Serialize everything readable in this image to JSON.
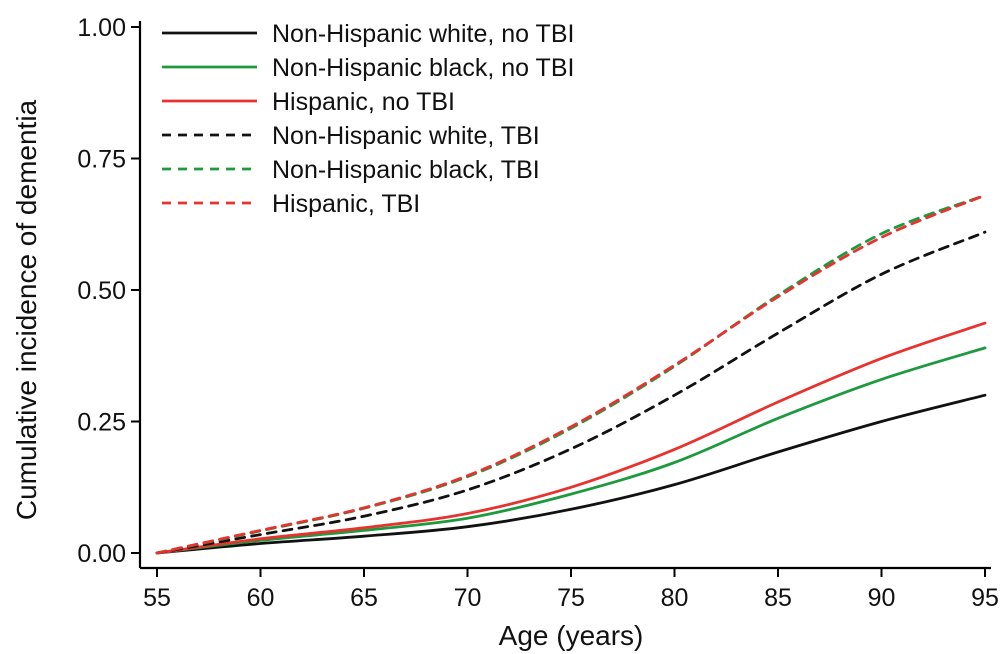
{
  "chart_data": {
    "type": "line",
    "title": "",
    "xlabel": "Age (years)",
    "ylabel": "Cumulative incidence of dementia",
    "xlim": [
      55,
      95
    ],
    "ylim": [
      0,
      1
    ],
    "x_ticks": [
      55,
      60,
      65,
      70,
      75,
      80,
      85,
      90,
      95
    ],
    "y_ticks": [
      0,
      0.25,
      0.5,
      0.75,
      1
    ],
    "y_tick_labels": [
      "0.00",
      "0.25",
      "0.50",
      "0.75",
      "1.00"
    ],
    "grid": false,
    "legend_position": "top-left",
    "x": [
      55,
      60,
      65,
      70,
      75,
      80,
      85,
      90,
      95
    ],
    "series": [
      {
        "name": "Non-Hispanic white, no TBI",
        "color": "#111111",
        "dash": "solid",
        "values": [
          0.0,
          0.018,
          0.032,
          0.05,
          0.083,
          0.13,
          0.192,
          0.25,
          0.3
        ]
      },
      {
        "name": "Non-Hispanic black, no TBI",
        "color": "#1e9a3e",
        "dash": "solid",
        "values": [
          0.0,
          0.024,
          0.043,
          0.066,
          0.112,
          0.172,
          0.256,
          0.33,
          0.39
        ]
      },
      {
        "name": "Hispanic, no TBI",
        "color": "#e8322f",
        "dash": "solid",
        "values": [
          0.0,
          0.027,
          0.048,
          0.075,
          0.125,
          0.197,
          0.287,
          0.37,
          0.437
        ]
      },
      {
        "name": "Non-Hispanic white, TBI",
        "color": "#111111",
        "dash": "dashed",
        "values": [
          0.0,
          0.035,
          0.07,
          0.12,
          0.198,
          0.3,
          0.418,
          0.53,
          0.61
        ]
      },
      {
        "name": "Non-Hispanic black, TBI",
        "color": "#1e9a3e",
        "dash": "dashed",
        "values": [
          0.0,
          0.042,
          0.085,
          0.145,
          0.237,
          0.355,
          0.49,
          0.607,
          0.68
        ]
      },
      {
        "name": "Hispanic, TBI",
        "color": "#e8322f",
        "dash": "dashed",
        "values": [
          0.0,
          0.043,
          0.086,
          0.147,
          0.24,
          0.357,
          0.487,
          0.6,
          0.68
        ]
      }
    ]
  }
}
